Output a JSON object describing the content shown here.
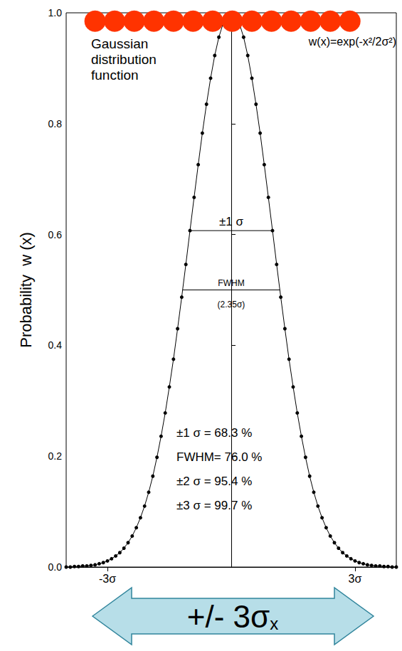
{
  "chart_data": {
    "type": "line",
    "title": "Gaussian distribution function",
    "formula": "w(x)=exp(-x²/2σ²)",
    "y_label": "Probability  w (x)",
    "x": [
      -4.0,
      -3.9,
      -3.8,
      -3.7,
      -3.6,
      -3.5,
      -3.4,
      -3.3,
      -3.2,
      -3.1,
      -3.0,
      -2.9,
      -2.8,
      -2.7,
      -2.6,
      -2.5,
      -2.4,
      -2.3,
      -2.2,
      -2.1,
      -2.0,
      -1.9,
      -1.8,
      -1.7,
      -1.6,
      -1.5,
      -1.4,
      -1.3,
      -1.2,
      -1.1,
      -1.0,
      -0.9,
      -0.8,
      -0.7,
      -0.6,
      -0.5,
      -0.4,
      -0.3,
      -0.2,
      -0.1,
      0,
      0.1,
      0.2,
      0.3,
      0.4,
      0.5,
      0.6,
      0.7,
      0.8,
      0.9,
      1.0,
      1.1,
      1.2,
      1.3,
      1.4,
      1.5,
      1.6,
      1.7,
      1.8,
      1.9,
      2.0,
      2.1,
      2.2,
      2.3,
      2.4,
      2.5,
      2.6,
      2.7,
      2.8,
      2.9,
      3.0,
      3.1,
      3.2,
      3.3,
      3.4,
      3.5,
      3.6,
      3.7,
      3.8,
      3.9,
      4.0
    ],
    "series": [
      {
        "type": "line",
        "color": "#000000",
        "marker": "circle",
        "line_style": "solid",
        "values": [
          0,
          0,
          0.001,
          0.001,
          0.002,
          0.002,
          0.003,
          0.004,
          0.006,
          0.008,
          0.011,
          0.015,
          0.02,
          0.026,
          0.034,
          0.044,
          0.056,
          0.071,
          0.089,
          0.11,
          0.135,
          0.164,
          0.198,
          0.236,
          0.278,
          0.325,
          0.375,
          0.43,
          0.487,
          0.546,
          0.607,
          0.667,
          0.726,
          0.783,
          0.835,
          0.882,
          0.923,
          0.956,
          0.98,
          0.995,
          1.0,
          0.995,
          0.98,
          0.956,
          0.923,
          0.882,
          0.835,
          0.783,
          0.726,
          0.667,
          0.607,
          0.546,
          0.487,
          0.43,
          0.375,
          0.325,
          0.278,
          0.236,
          0.198,
          0.164,
          0.135,
          0.11,
          0.089,
          0.071,
          0.056,
          0.044,
          0.034,
          0.026,
          0.02,
          0.015,
          0.011,
          0.008,
          0.006,
          0.004,
          0.003,
          0.002,
          0.002,
          0.001,
          0.001,
          0,
          0
        ]
      },
      {
        "type": "scatter",
        "color": "#ff3300",
        "marker": "circle",
        "x": [
          -3.3,
          -2.825,
          -2.35,
          -1.875,
          -1.4,
          -0.925,
          -0.45,
          0.025,
          0.5,
          0.975,
          1.45,
          1.925,
          2.4,
          2.875
        ],
        "values": [
          0.985,
          0.985,
          0.985,
          0.985,
          0.985,
          0.985,
          0.985,
          0.985,
          0.985,
          0.985,
          0.985,
          0.985,
          0.985,
          0.985
        ]
      }
    ],
    "xlim": [
      -4,
      4
    ],
    "xticks": [
      {
        "value": -3,
        "label": "-3σ"
      },
      {
        "value": 3,
        "label": "3σ"
      }
    ],
    "ylim": [
      0,
      1
    ],
    "yticks": [
      {
        "value": 0,
        "label": "0.0"
      },
      0.2,
      0.4,
      0.6,
      0.8,
      {
        "value": 1,
        "label": "1.0"
      }
    ],
    "intervals": [
      {
        "label": "±1 σ",
        "y": 0.607,
        "x": [
          -1,
          1
        ]
      },
      {
        "label": "FWHM",
        "sublabel": "(2.35σ)",
        "y": 0.5,
        "x": [
          -1.1775,
          1.1775
        ]
      }
    ],
    "annotations": [
      "±1 σ = 68.3 %",
      "FWHM= 76.0 %",
      "±2 σ = 95.4 %",
      "±3 σ = 99.7 %"
    ],
    "arrow_label": {
      "text": "+/- 3σ",
      "subscript": "x"
    },
    "grid": false
  }
}
